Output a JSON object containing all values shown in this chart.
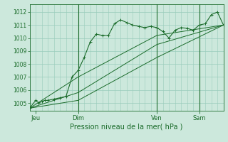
{
  "bg_color": "#cce8dc",
  "plot_bg_color": "#cce8dc",
  "grid_color": "#99ccbb",
  "line_color": "#1a6b2a",
  "ylabel": "Pression niveau de la mer( hPa )",
  "ylim": [
    1004.4,
    1012.6
  ],
  "yticks": [
    1005,
    1006,
    1007,
    1008,
    1009,
    1010,
    1011,
    1012
  ],
  "xlim": [
    0,
    64
  ],
  "day_labels": [
    "Jeu",
    "Dim",
    "Ven",
    "Sam"
  ],
  "day_positions": [
    2,
    16,
    42,
    56
  ],
  "day_vlines": [
    16,
    42,
    56
  ],
  "series1_x": [
    0,
    2,
    3,
    4,
    5,
    6,
    8,
    10,
    12,
    14,
    16,
    18,
    20,
    22,
    24,
    26,
    28,
    30,
    32,
    34,
    36,
    38,
    40,
    42,
    44,
    46,
    48,
    50,
    52,
    54,
    56,
    58,
    60,
    62,
    64
  ],
  "series1_y": [
    1004.6,
    1005.2,
    1005.0,
    1005.1,
    1005.2,
    1005.2,
    1005.3,
    1005.4,
    1005.5,
    1007.0,
    1007.5,
    1008.5,
    1009.7,
    1010.3,
    1010.2,
    1010.2,
    1011.1,
    1011.4,
    1011.2,
    1011.0,
    1010.9,
    1010.8,
    1010.9,
    1010.8,
    1010.5,
    1010.0,
    1010.6,
    1010.8,
    1010.75,
    1010.6,
    1011.0,
    1011.1,
    1011.8,
    1012.0,
    1011.0
  ],
  "series2_x": [
    0,
    16,
    42,
    64
  ],
  "series2_y": [
    1004.6,
    1005.2,
    1008.5,
    1011.0
  ],
  "series3_x": [
    0,
    16,
    42,
    64
  ],
  "series3_y": [
    1004.6,
    1005.8,
    1009.5,
    1011.0
  ],
  "series4_x": [
    0,
    16,
    42,
    64
  ],
  "series4_y": [
    1004.6,
    1007.0,
    1010.2,
    1011.0
  ],
  "xlabel_fontsize": 7,
  "ytick_fontsize": 5.5,
  "xtick_fontsize": 6
}
